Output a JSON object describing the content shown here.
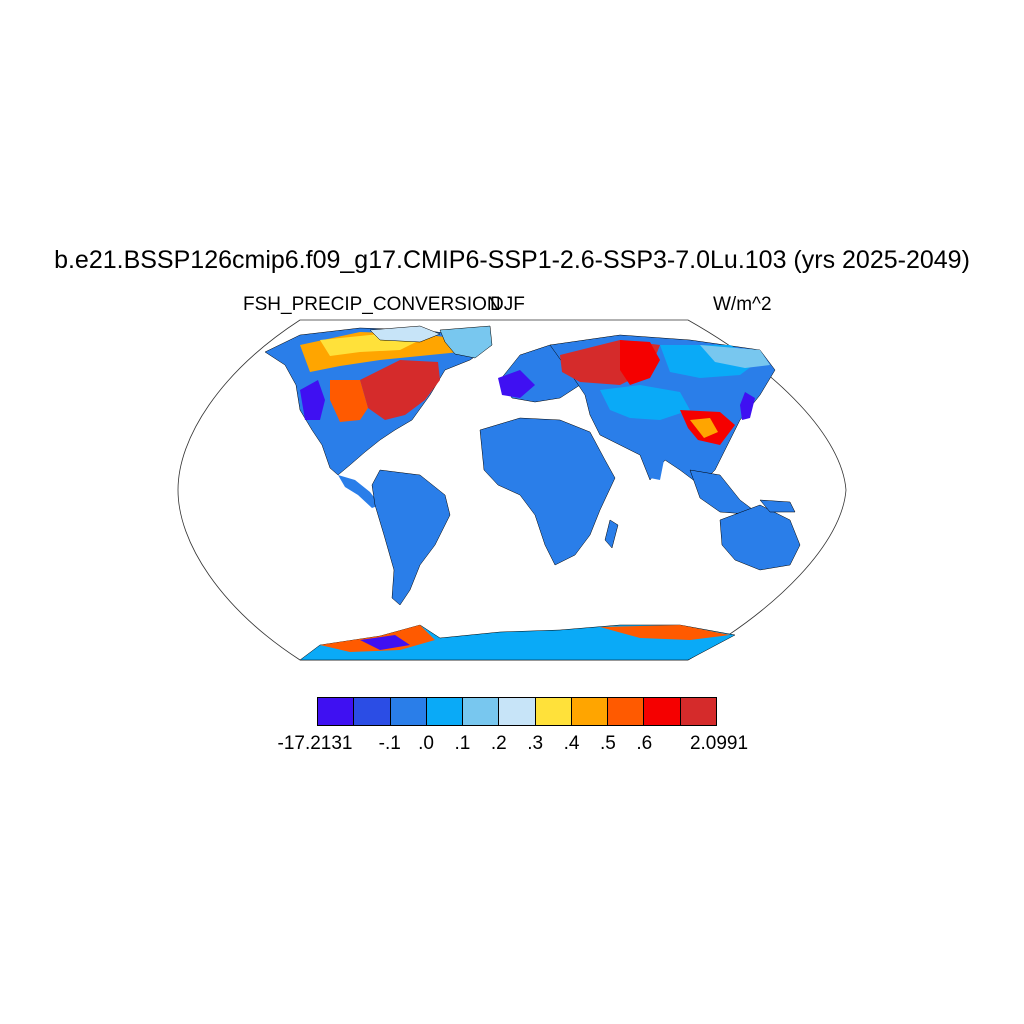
{
  "title": "b.e21.BSSP126cmip6.f09_g17.CMIP6-SSP1-2.6-SSP3-7.0Lu.103 (yrs 2025-2049)",
  "subtitle_left": "FSH_PRECIP_CONVERSION",
  "subtitle_center": "DJF",
  "subtitle_right": "W/m^2",
  "colorbar": {
    "colors": [
      "#3f10f2",
      "#2b4de5",
      "#2a7ee9",
      "#0aaaf7",
      "#78c7ef",
      "#c7e4f8",
      "#ffe13a",
      "#ffa500",
      "#ff5a00",
      "#f50000",
      "#d52b2b"
    ],
    "labels": [
      "-17.2131",
      "-.1",
      ".0",
      ".1",
      ".2",
      ".3",
      ".4",
      ".5",
      ".6",
      "2.0991"
    ]
  },
  "map_colors": {
    "background": "#2a7ee9",
    "antarctic": "#0aaaf7",
    "coast": "#000000"
  }
}
